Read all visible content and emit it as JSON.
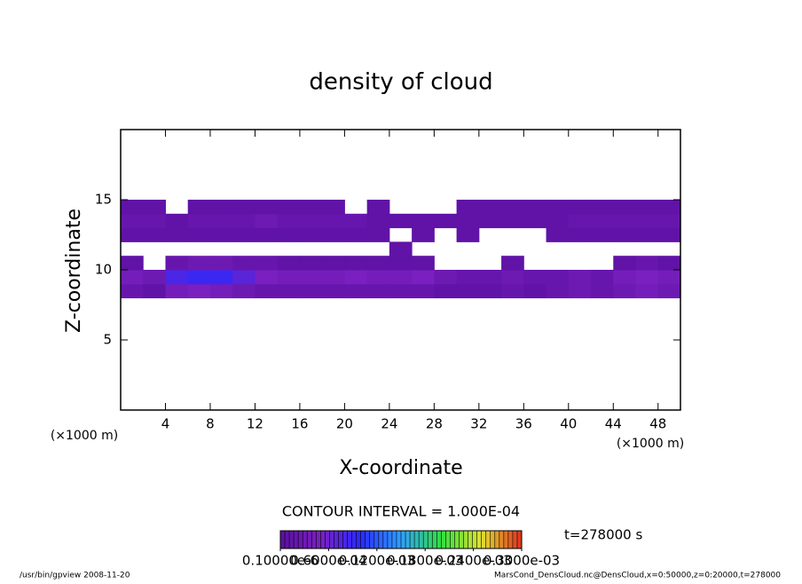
{
  "chart_data": {
    "type": "heatmap",
    "title": "density of cloud",
    "x_label": "X-coordinate",
    "y_label": "Z-coordinate",
    "x_unit": "(×1000 m)",
    "y_unit": "(×1000 m)",
    "xlim": [
      0,
      50
    ],
    "ylim": [
      0,
      20
    ],
    "xticks": [
      4,
      8,
      12,
      16,
      20,
      24,
      28,
      32,
      36,
      40,
      44,
      48
    ],
    "yticks": [
      5,
      10,
      15
    ],
    "x": [
      1,
      3,
      5,
      7,
      9,
      11,
      13,
      15,
      17,
      19,
      21,
      23,
      25,
      27,
      29,
      31,
      33,
      35,
      37,
      39,
      41,
      43,
      45,
      47,
      49
    ],
    "z": [
      8.5,
      9.5,
      10.5,
      11.5,
      12.5,
      13.5,
      14.5
    ],
    "values": [
      [
        2e-05,
        1e-05,
        4e-05,
        5e-05,
        4e-05,
        3e-05,
        2e-05,
        2e-05,
        2e-05,
        2e-05,
        2e-05,
        2e-05,
        2e-05,
        2e-05,
        1e-05,
        1e-05,
        1e-05,
        2e-05,
        1e-05,
        2e-05,
        3e-05,
        2e-05,
        3e-05,
        4e-05,
        3e-05
      ],
      [
        4e-05,
        3e-05,
        8e-05,
        9e-05,
        9e-05,
        7e-05,
        5e-05,
        4e-05,
        4e-05,
        4e-05,
        5e-05,
        4e-05,
        4e-05,
        5e-05,
        3e-05,
        2e-05,
        2e-05,
        3e-05,
        2e-05,
        2e-05,
        3e-05,
        2e-05,
        4e-05,
        5e-05,
        4e-05
      ],
      [
        1e-05,
        null,
        2e-05,
        3e-05,
        3e-05,
        2e-05,
        2e-05,
        1e-05,
        1e-05,
        1e-05,
        1e-05,
        1e-05,
        1e-05,
        1e-05,
        null,
        null,
        null,
        1e-05,
        null,
        null,
        null,
        null,
        1e-05,
        2e-05,
        1e-05
      ],
      [
        null,
        null,
        null,
        null,
        null,
        null,
        null,
        null,
        null,
        null,
        null,
        null,
        1e-05,
        null,
        null,
        null,
        null,
        null,
        null,
        null,
        null,
        null,
        null,
        null,
        null
      ],
      [
        1e-05,
        1e-05,
        1e-05,
        1e-05,
        1e-05,
        1e-05,
        1e-05,
        1e-05,
        1e-05,
        1e-05,
        1e-05,
        1e-05,
        null,
        1e-05,
        null,
        1e-05,
        null,
        null,
        null,
        1e-05,
        1e-05,
        1e-05,
        1e-05,
        1e-05,
        1e-05
      ],
      [
        2e-05,
        2e-05,
        1e-05,
        2e-05,
        2e-05,
        2e-05,
        3e-05,
        2e-05,
        2e-05,
        2e-05,
        2e-05,
        1e-05,
        1e-05,
        1e-05,
        1e-05,
        1e-05,
        1e-05,
        1e-05,
        1e-05,
        1e-05,
        2e-05,
        2e-05,
        2e-05,
        2e-05,
        2e-05
      ],
      [
        1e-05,
        1e-05,
        null,
        1e-05,
        1e-05,
        1e-05,
        1e-05,
        1e-05,
        1e-05,
        1e-05,
        null,
        1e-05,
        null,
        null,
        null,
        1e-05,
        1e-05,
        1e-05,
        1e-05,
        1e-05,
        1e-05,
        1e-05,
        1e-05,
        1e-05,
        1e-05
      ]
    ],
    "clim": [
      0,
      0.0003
    ],
    "colorscale": [
      "#5a10a0",
      "#7a20c0",
      "#2a2aff",
      "#30a0ff",
      "#30e040",
      "#e0e030",
      "#e03020"
    ],
    "colorbar_ticks": [
      {
        "value": 0,
        "label": "0.10000e-6"
      },
      {
        "value": 6e-05,
        "label": "0.6000e-04"
      },
      {
        "value": 0.00012,
        "label": "0.1200e-03"
      },
      {
        "value": 0.00018,
        "label": "0.1800e-03"
      },
      {
        "value": 0.00024,
        "label": "0.2400e-03"
      },
      {
        "value": 0.0003,
        "label": "0.3000e-03"
      }
    ],
    "contour_interval": "CONTOUR INTERVAL = 1.000E-04",
    "time_label": "t=278000 s",
    "footer_left": "/usr/bin/gpview  2008-11-20",
    "footer_right": "MarsCond_DensCloud.nc@DensCloud,x=0:50000,z=0:20000,t=278000"
  }
}
